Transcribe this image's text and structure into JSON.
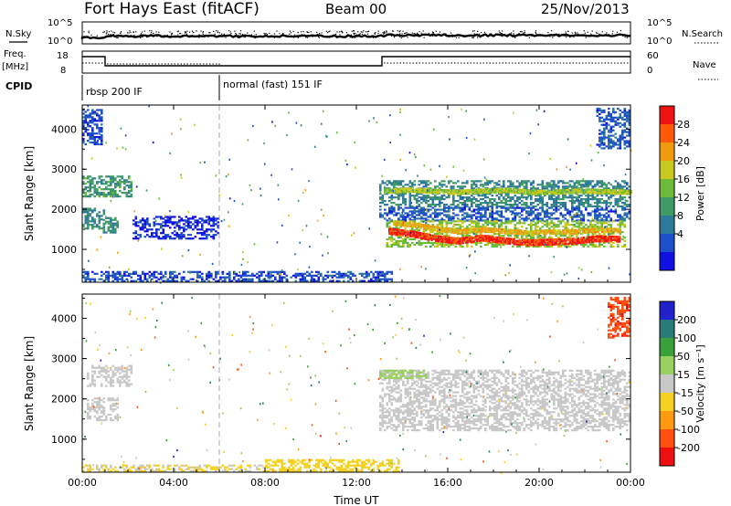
{
  "header": {
    "site": "Fort Hays East (fitACF)",
    "beam": "Beam 00",
    "date": "25/Nov/2013"
  },
  "status_panels": {
    "nsky_label": "N.Sky",
    "nsky_ticks": [
      "10^5",
      "10^0"
    ],
    "nsearch_label": "N.Search",
    "nsearch_ticks": [
      "10^5",
      "10^0"
    ],
    "freq_label_1": "Freq.",
    "freq_label_2": "[MHz]",
    "freq_ticks": [
      "18",
      "8"
    ],
    "nave_label": "Nave",
    "nave_ticks": [
      "60",
      "0"
    ],
    "cpid_label": "CPID",
    "cpid_segments": [
      {
        "start_h": 0,
        "end_h": 6,
        "label": "rbsp 200 IF"
      },
      {
        "start_h": 6,
        "end_h": 24,
        "label": "normal (fast) 151 IF"
      }
    ]
  },
  "chart_data": [
    {
      "type": "heatmap",
      "title": "Power",
      "xlabel": "Time UT",
      "ylabel": "Slant Range [km]",
      "xlim_h": [
        0,
        24
      ],
      "ylim_km": [
        180,
        4600
      ],
      "yticks": [
        "4000",
        "3000",
        "2000",
        "1000"
      ],
      "colorbar_label": "Power [dB]",
      "colorbar_ticks": [
        "28",
        "24",
        "20",
        "16",
        "12",
        "8",
        "4"
      ],
      "colorbar_colors": [
        "#1010e0",
        "#1c4fc8",
        "#2f7a9a",
        "#3f9a66",
        "#6cba3a",
        "#c8c81e",
        "#f09a10",
        "#ff5a0a",
        "#ee1414"
      ],
      "colorbar_range_db": [
        0,
        32
      ],
      "patches": [
        {
          "t0": 0.0,
          "t1": 2.2,
          "r0": 2300,
          "r1": 2800,
          "v": 12
        },
        {
          "t0": 0.0,
          "t1": 0.9,
          "r0": 1500,
          "r1": 2000,
          "v": 10
        },
        {
          "t0": 0.9,
          "t1": 1.6,
          "r0": 1400,
          "r1": 1800,
          "v": 11
        },
        {
          "t0": 0.0,
          "t1": 0.8,
          "r0": 3600,
          "r1": 4500,
          "v": 5
        },
        {
          "t0": 2.2,
          "t1": 5.9,
          "r0": 1250,
          "r1": 1800,
          "v": 3
        },
        {
          "t0": 0.0,
          "t1": 13.5,
          "r0": 190,
          "r1": 450,
          "v": 5
        },
        {
          "t0": 13.0,
          "t1": 24.0,
          "r0": 2050,
          "r1": 2700,
          "v": 10
        },
        {
          "t0": 13.0,
          "t1": 24.0,
          "r0": 1700,
          "r1": 2050,
          "v": 6
        },
        {
          "t0": 13.3,
          "t1": 23.8,
          "r0": 1050,
          "r1": 1700,
          "v": 17
        },
        {
          "t0": 22.5,
          "t1": 24.0,
          "r0": 3500,
          "r1": 4500,
          "v": 6
        }
      ],
      "bands": [
        {
          "t0": 13.4,
          "t1": 23.5,
          "r": [
            1450,
            1380,
            1270,
            1200,
            1280,
            1210,
            1160,
            1180,
            1200,
            1260,
            1250
          ],
          "w": 140,
          "v": 29
        },
        {
          "t0": 13.6,
          "t1": 23.5,
          "r": [
            1650,
            1590,
            1490,
            1430,
            1480,
            1440,
            1400,
            1420,
            1430,
            1470,
            1460
          ],
          "w": 90,
          "v": 22
        },
        {
          "t0": 13.2,
          "t1": 24.0,
          "r": [
            2450,
            2480,
            2450,
            2420,
            2460,
            2470,
            2420,
            2430,
            2460,
            2440,
            2420
          ],
          "w": 110,
          "v": 18
        }
      ]
    },
    {
      "type": "heatmap",
      "title": "Velocity",
      "xlabel": "Time UT",
      "ylabel": "Slant Range [km]",
      "xlim_h": [
        0,
        24
      ],
      "ylim_km": [
        180,
        4600
      ],
      "xticks": [
        "00:00",
        "04:00",
        "08:00",
        "12:00",
        "16:00",
        "20:00",
        "00:00"
      ],
      "yticks": [
        "4000",
        "3000",
        "2000",
        "1000"
      ],
      "colorbar_label": "Velocity [m s⁻¹]",
      "colorbar_ticks": [
        "200",
        "100",
        "50",
        "15",
        "-15",
        "-50",
        "-100",
        "-200"
      ],
      "colorbar_colors": [
        "#2222cc",
        "#2a7a7a",
        "#3aa03a",
        "#9ad060",
        "#c8c8c8",
        "#f5d020",
        "#ff9a10",
        "#ff5010",
        "#ee1010"
      ],
      "colorbar_range_ms": [
        -250,
        250
      ],
      "patches": [
        {
          "t0": 0.2,
          "t1": 2.2,
          "r0": 2300,
          "r1": 2800,
          "v": 0
        },
        {
          "t0": 0.2,
          "t1": 1.6,
          "r0": 1450,
          "r1": 2000,
          "v": 0
        },
        {
          "t0": 0.0,
          "t1": 8.0,
          "r0": 190,
          "r1": 350,
          "v": -30
        },
        {
          "t0": 8.0,
          "t1": 13.8,
          "r0": 190,
          "r1": 500,
          "v": -60
        },
        {
          "t0": 13.0,
          "t1": 24.0,
          "r0": 2050,
          "r1": 2700,
          "v": 0
        },
        {
          "t0": 13.0,
          "t1": 24.0,
          "r0": 1200,
          "r1": 2050,
          "v": 0
        },
        {
          "t0": 13.0,
          "t1": 15.0,
          "r0": 2500,
          "r1": 2700,
          "v": 60
        },
        {
          "t0": 23.0,
          "t1": 24.0,
          "r0": 3500,
          "r1": 4500,
          "v": -180
        }
      ]
    }
  ]
}
